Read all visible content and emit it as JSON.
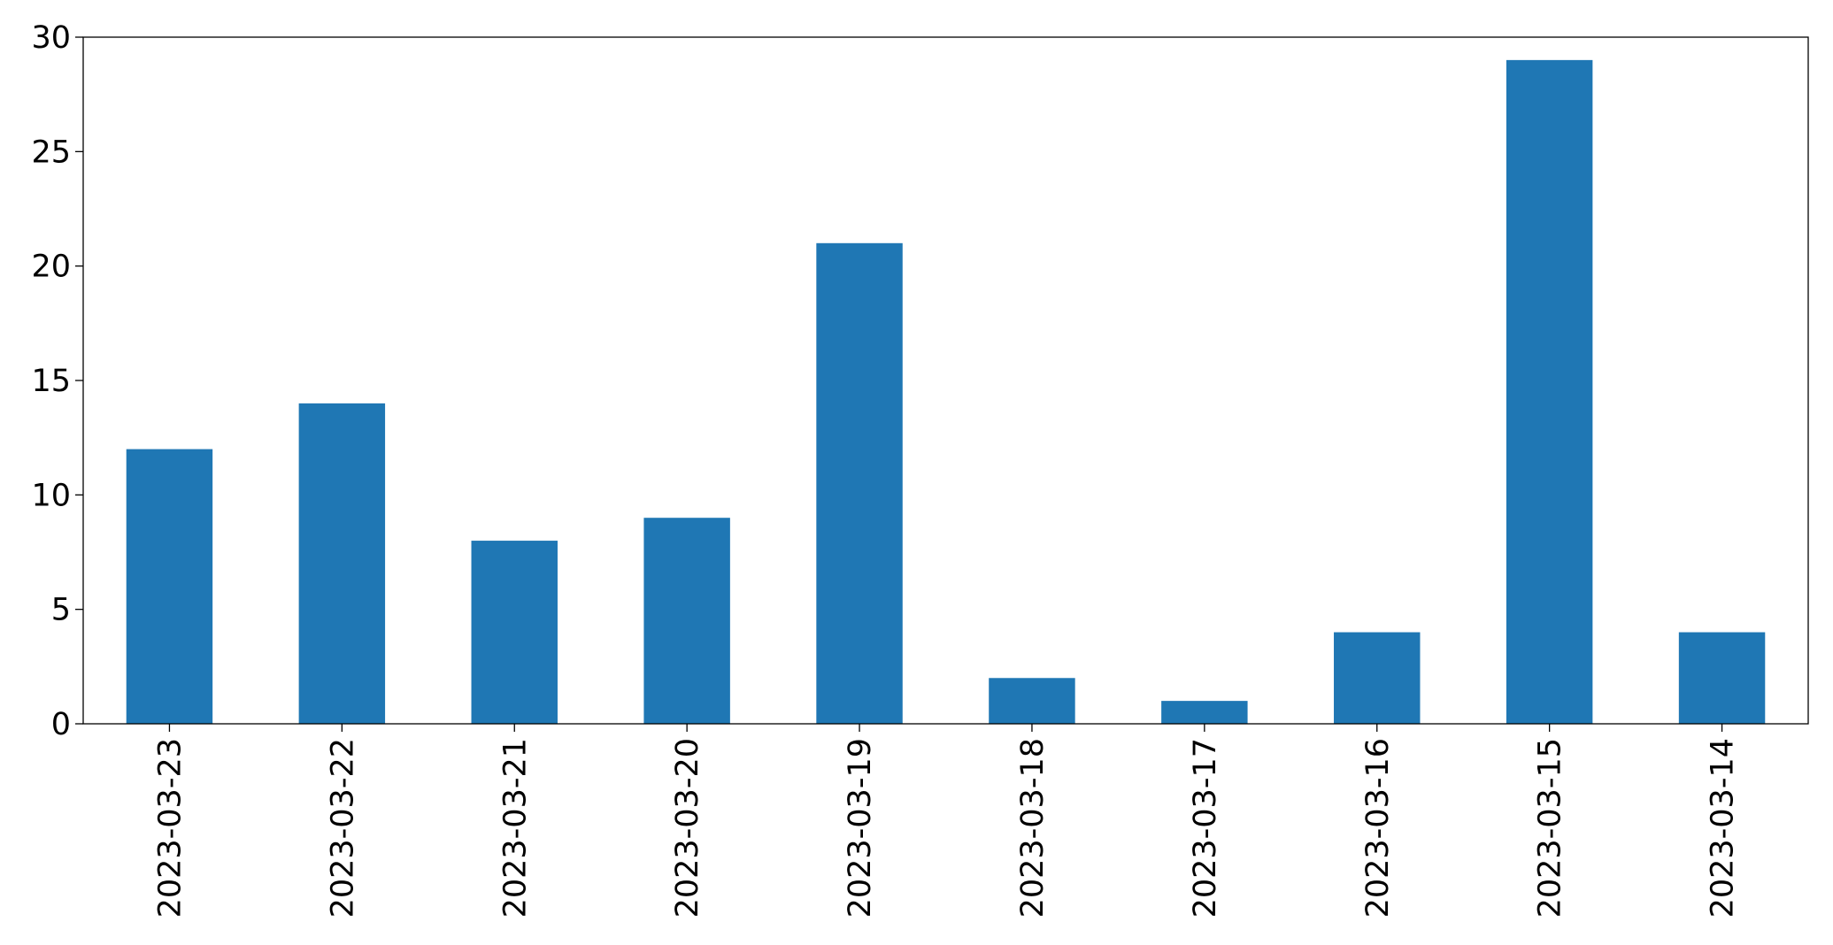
{
  "chart_data": {
    "type": "bar",
    "categories": [
      "2023-03-23",
      "2023-03-22",
      "2023-03-21",
      "2023-03-20",
      "2023-03-19",
      "2023-03-18",
      "2023-03-17",
      "2023-03-16",
      "2023-03-15",
      "2023-03-14"
    ],
    "values": [
      12,
      14,
      8,
      9,
      21,
      2,
      1,
      4,
      29,
      4
    ],
    "title": "",
    "xlabel": "",
    "ylabel": "",
    "ylim": [
      0,
      30
    ],
    "yticks": [
      0,
      5,
      10,
      15,
      20,
      25,
      30
    ],
    "grid": false,
    "legend": false,
    "bar_color": "#1f77b4"
  }
}
